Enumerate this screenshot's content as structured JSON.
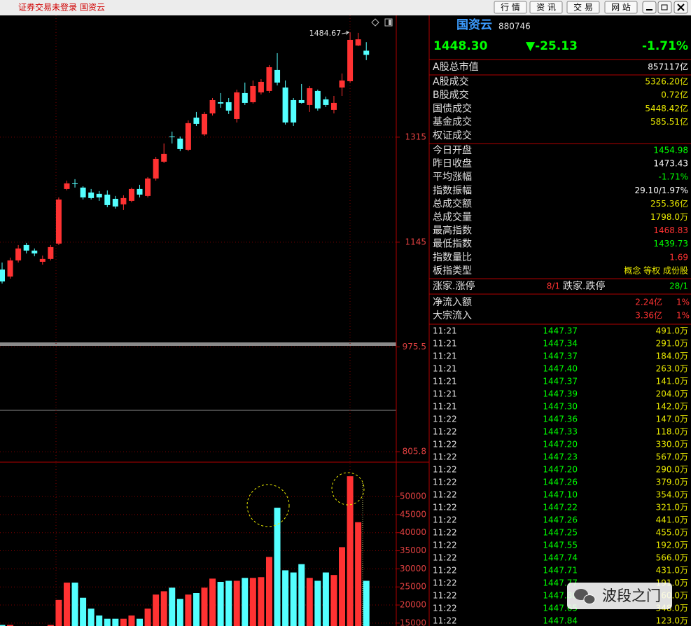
{
  "titlebar": {
    "status": "证券交易未登录",
    "name": "国资云",
    "buttons": [
      "行 情",
      "资 讯",
      "交 易",
      "网 站"
    ]
  },
  "chart_data": [
    {
      "type": "candlestick",
      "open": [
        1100.8,
        1089.4,
        1115.5,
        1140.4,
        1131.4,
        1113.2,
        1117.8,
        1142.7,
        1231.1,
        1240.2,
        1233.4,
        1225.4,
        1223.2,
        1222.0,
        1215.2,
        1206.2,
        1211.8,
        1231.1,
        1219.8,
        1248.1,
        1275.3,
        1316.1,
        1312.7,
        1294.6,
        1346.7,
        1319.5,
        1353.5,
        1371.6,
        1371.6,
        1344.4,
        1386.4,
        1371.6,
        1387.5,
        1389.8,
        1423.8,
        1395.4,
        1375.0,
        1375.0,
        1367.1,
        1389.8,
        1376.2,
        1359.2,
        1395.4,
        1405.6,
        1463.4,
        1454.98
      ],
      "close": [
        1081.5,
        1115.5,
        1134.8,
        1131.4,
        1126.8,
        1117.8,
        1137.0,
        1214.1,
        1240.2,
        1239.0,
        1217.5,
        1216.4,
        1217.5,
        1205.0,
        1202.8,
        1216.4,
        1231.1,
        1222.0,
        1248.1,
        1279.8,
        1287.8,
        1315.0,
        1295.7,
        1337.7,
        1336.5,
        1352.4,
        1375.0,
        1369.4,
        1358.0,
        1387.5,
        1370.5,
        1397.7,
        1404.5,
        1428.3,
        1403.4,
        1338.8,
        1338.8,
        1370.5,
        1394.3,
        1361.5,
        1367.1,
        1370.5,
        1406.8,
        1472.5,
        1473.43,
        1448.3
      ],
      "high": [
        1112.1,
        1120.0,
        1140.4,
        1143.8,
        1134.8,
        1123.4,
        1140.4,
        1217.5,
        1244.7,
        1247.0,
        1235.6,
        1231.1,
        1227.7,
        1228.8,
        1219.8,
        1220.9,
        1233.4,
        1237.9,
        1250.4,
        1283.2,
        1304.8,
        1324.0,
        1316.1,
        1342.2,
        1355.8,
        1355.8,
        1378.4,
        1386.4,
        1378.4,
        1392.0,
        1403.4,
        1406.8,
        1409.0,
        1431.7,
        1451.0,
        1406.8,
        1378.4,
        1401.1,
        1397.7,
        1392.0,
        1380.7,
        1381.8,
        1418.1,
        1484.67,
        1483.9,
        1468.83
      ],
      "low": [
        1078.1,
        1086.0,
        1112.1,
        1126.8,
        1122.3,
        1108.7,
        1115.5,
        1140.4,
        1228.9,
        1233.4,
        1214.1,
        1214.1,
        1211.8,
        1201.6,
        1199.4,
        1197.1,
        1209.6,
        1217.5,
        1217.5,
        1244.7,
        1273.0,
        1304.8,
        1292.3,
        1292.3,
        1333.1,
        1317.2,
        1350.1,
        1362.6,
        1352.4,
        1338.8,
        1367.1,
        1369.4,
        1384.1,
        1386.4,
        1398.8,
        1335.4,
        1333.1,
        1369.4,
        1355.8,
        1358.0,
        1363.7,
        1353.5,
        1381.8,
        1403.4,
        1462.3,
        1439.73
      ],
      "up_color": "#ff3232",
      "down_color": "#54ffff",
      "ylim": [
        790,
        1511
      ],
      "yticks": [
        1315,
        1145,
        975.5,
        805.8
      ],
      "grid": true
    },
    {
      "type": "bar",
      "values": [
        14500,
        14500,
        14000,
        14000,
        13800,
        13800,
        14500,
        21400,
        26200,
        26200,
        22000,
        19000,
        17100,
        16200,
        16200,
        16200,
        17100,
        16200,
        19000,
        22900,
        23800,
        24800,
        21700,
        22900,
        23300,
        24800,
        27300,
        26400,
        26700,
        26700,
        27500,
        27500,
        27700,
        33300,
        46900,
        29600,
        29000,
        31300,
        27500,
        26700,
        29000,
        28300,
        36000,
        55600,
        42900,
        26700
      ],
      "ylim": [
        14200,
        59500
      ],
      "yticks": [
        50000,
        45000,
        40000,
        35000,
        30000,
        25000,
        20000,
        15000
      ],
      "grid": true
    }
  ],
  "quote": {
    "name": "国资云",
    "code": "880746",
    "price": "1448.30",
    "change": "▼-25.13",
    "pct": "-1.71%"
  },
  "stats": [
    [
      {
        "label": "A股总市值",
        "value": "857117亿",
        "color": "#ffffff"
      }
    ],
    [
      {
        "label": "A股成交",
        "value": "5326.20亿",
        "color": "#e8e800"
      },
      {
        "label": "B股成交",
        "value": "0.72亿",
        "color": "#e8e800"
      },
      {
        "label": "国债成交",
        "value": "5448.42亿",
        "color": "#e8e800"
      },
      {
        "label": "基金成交",
        "value": "585.51亿",
        "color": "#e8e800"
      },
      {
        "label": "权证成交"
      }
    ],
    [
      {
        "label": "今日开盘",
        "value": "1454.98",
        "color": "#00ff00"
      },
      {
        "label": "昨日收盘",
        "value": "1473.43",
        "color": "#ffffff"
      },
      {
        "label": "平均涨幅",
        "value": "-1.71%",
        "color": "#00ff00"
      },
      {
        "label": "指数振幅",
        "value": "29.10/1.97%",
        "color": "#ffffff"
      },
      {
        "label": "总成交额",
        "value": "255.36亿",
        "color": "#e8e800"
      },
      {
        "label": "总成交量",
        "value": "1798.0万",
        "color": "#e8e800"
      },
      {
        "label": "最高指数",
        "value": "1468.83",
        "color": "#ff3232"
      },
      {
        "label": "最低指数",
        "value": "1439.73",
        "color": "#00ff00"
      },
      {
        "label": "指数量比",
        "value": "1.69",
        "color": "#ff3232"
      },
      {
        "label": "板指类型",
        "value": "概念 等权 成份股",
        "color": "#e8e800"
      }
    ]
  ],
  "breadth": {
    "up_label": "涨家.涨停",
    "up_value": "8/1",
    "down_label": "跌家.跌停",
    "down_value": "28/1"
  },
  "flows": [
    {
      "label": "净流入额",
      "value": "2.24亿",
      "pct": "1%"
    },
    {
      "label": "大宗流入",
      "value": "3.36亿",
      "pct": "1%"
    }
  ],
  "ticks": [
    {
      "time": "11:21",
      "price": "1447.37",
      "volume": "491.0万"
    },
    {
      "time": "11:21",
      "price": "1447.34",
      "volume": "291.0万"
    },
    {
      "time": "11:21",
      "price": "1447.37",
      "volume": "184.0万"
    },
    {
      "time": "11:21",
      "price": "1447.40",
      "volume": "263.0万"
    },
    {
      "time": "11:21",
      "price": "1447.37",
      "volume": "141.0万"
    },
    {
      "time": "11:21",
      "price": "1447.39",
      "volume": "204.0万"
    },
    {
      "time": "11:21",
      "price": "1447.30",
      "volume": "142.0万"
    },
    {
      "time": "11:22",
      "price": "1447.36",
      "volume": "147.0万"
    },
    {
      "time": "11:22",
      "price": "1447.33",
      "volume": "118.0万"
    },
    {
      "time": "11:22",
      "price": "1447.20",
      "volume": "330.0万"
    },
    {
      "time": "11:22",
      "price": "1447.23",
      "volume": "567.0万"
    },
    {
      "time": "11:22",
      "price": "1447.20",
      "volume": "290.0万"
    },
    {
      "time": "11:22",
      "price": "1447.26",
      "volume": "379.0万"
    },
    {
      "time": "11:22",
      "price": "1447.10",
      "volume": "354.0万"
    },
    {
      "time": "11:22",
      "price": "1447.22",
      "volume": "321.0万"
    },
    {
      "time": "11:22",
      "price": "1447.26",
      "volume": "441.0万"
    },
    {
      "time": "11:22",
      "price": "1447.25",
      "volume": "455.0万"
    },
    {
      "time": "11:22",
      "price": "1447.55",
      "volume": "192.0万"
    },
    {
      "time": "11:22",
      "price": "1447.74",
      "volume": "566.0万"
    },
    {
      "time": "11:22",
      "price": "1447.71",
      "volume": "431.0万"
    },
    {
      "time": "11:22",
      "price": "1447.77",
      "volume": "191.0万"
    },
    {
      "time": "11:22",
      "price": "1447.80",
      "volume": "60.0万"
    },
    {
      "time": "11:22",
      "price": "1447.65",
      "volume": "348.0万"
    },
    {
      "time": "11:22",
      "price": "1447.84",
      "volume": "123.0万"
    }
  ],
  "watermark": "波段之门"
}
